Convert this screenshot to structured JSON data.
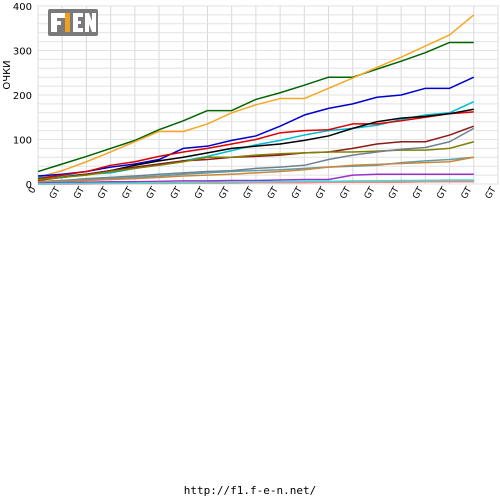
{
  "logo": {
    "text": "F1EN",
    "colors": {
      "box": "#7a7a7a",
      "accent": "#f0a020",
      "text": "#ffffff"
    }
  },
  "footer": {
    "url": "http://f1.f-e-n.net/"
  },
  "chart_data": {
    "type": "line",
    "title": "",
    "xlabel": "",
    "ylabel": "ОЧКИ",
    "ylim": [
      0,
      400
    ],
    "yticks": [
      0,
      100,
      200,
      300,
      400
    ],
    "grid": true,
    "legend": "none",
    "x_tick_labels": [
      "0",
      "GT",
      "GT",
      "GT",
      "GT",
      "GT",
      "GT",
      "GT",
      "GT",
      "GT",
      "GT",
      "GT",
      "GT",
      "GT",
      "GT",
      "GT",
      "GT",
      "GT",
      "GT",
      "GT"
    ],
    "series": [
      {
        "color": "#006400",
        "values": [
          28,
          45,
          62,
          80,
          98,
          122,
          142,
          165,
          165,
          190,
          205,
          222,
          240,
          240,
          258,
          276,
          295,
          318,
          318
        ]
      },
      {
        "color": "#f5a623",
        "values": [
          15,
          30,
          50,
          72,
          95,
          118,
          118,
          135,
          160,
          178,
          192,
          192,
          215,
          238,
          262,
          285,
          310,
          335,
          380
        ]
      },
      {
        "color": "#0000cd",
        "values": [
          18,
          22,
          28,
          38,
          45,
          55,
          80,
          85,
          98,
          108,
          130,
          155,
          170,
          180,
          195,
          200,
          215,
          215,
          240
        ]
      },
      {
        "color": "#00bcd4",
        "values": [
          15,
          18,
          22,
          25,
          35,
          45,
          52,
          62,
          75,
          88,
          98,
          110,
          120,
          125,
          132,
          145,
          155,
          160,
          185
        ]
      },
      {
        "color": "#dd0000",
        "values": [
          12,
          20,
          28,
          42,
          50,
          62,
          72,
          80,
          90,
          100,
          115,
          120,
          122,
          135,
          135,
          142,
          150,
          158,
          162
        ]
      },
      {
        "color": "#000000",
        "values": [
          10,
          15,
          22,
          30,
          42,
          52,
          60,
          70,
          80,
          85,
          90,
          98,
          108,
          125,
          140,
          148,
          152,
          158,
          168
        ]
      },
      {
        "color": "#8b1a1a",
        "values": [
          8,
          15,
          22,
          30,
          38,
          45,
          52,
          55,
          60,
          62,
          65,
          70,
          72,
          80,
          90,
          95,
          95,
          110,
          130
        ]
      },
      {
        "color": "#808000",
        "values": [
          10,
          15,
          20,
          28,
          35,
          42,
          50,
          60,
          60,
          65,
          68,
          70,
          72,
          72,
          74,
          76,
          76,
          80,
          95
        ]
      },
      {
        "color": "#708090",
        "values": [
          5,
          8,
          12,
          15,
          18,
          22,
          25,
          28,
          30,
          35,
          38,
          42,
          55,
          65,
          72,
          78,
          82,
          95,
          125
        ]
      },
      {
        "color": "#5f9ea0",
        "values": [
          5,
          8,
          10,
          12,
          15,
          18,
          22,
          25,
          28,
          30,
          32,
          35,
          38,
          40,
          42,
          48,
          52,
          55,
          60
        ]
      },
      {
        "color": "#cd853f",
        "values": [
          5,
          5,
          8,
          10,
          12,
          15,
          18,
          20,
          22,
          25,
          28,
          32,
          38,
          42,
          44,
          46,
          48,
          50,
          60
        ]
      },
      {
        "color": "#9932cc",
        "values": [
          2,
          3,
          4,
          5,
          5,
          6,
          7,
          7,
          8,
          8,
          9,
          10,
          10,
          20,
          22,
          22,
          22,
          22,
          22
        ]
      },
      {
        "color": "#a0a0a0",
        "values": [
          0,
          0,
          1,
          1,
          2,
          2,
          3,
          3,
          4,
          4,
          5,
          5,
          6,
          6,
          7,
          7,
          8,
          8,
          8
        ]
      },
      {
        "color": "#ff8080",
        "values": [
          0,
          0,
          0,
          1,
          1,
          1,
          2,
          2,
          2,
          3,
          3,
          3,
          4,
          4,
          4,
          4,
          5,
          5,
          5
        ]
      },
      {
        "color": "#40e0d0",
        "values": [
          0,
          1,
          1,
          2,
          2,
          3,
          3,
          4,
          4,
          5,
          5,
          6,
          6,
          7,
          7,
          8,
          8,
          9,
          9
        ]
      }
    ]
  }
}
